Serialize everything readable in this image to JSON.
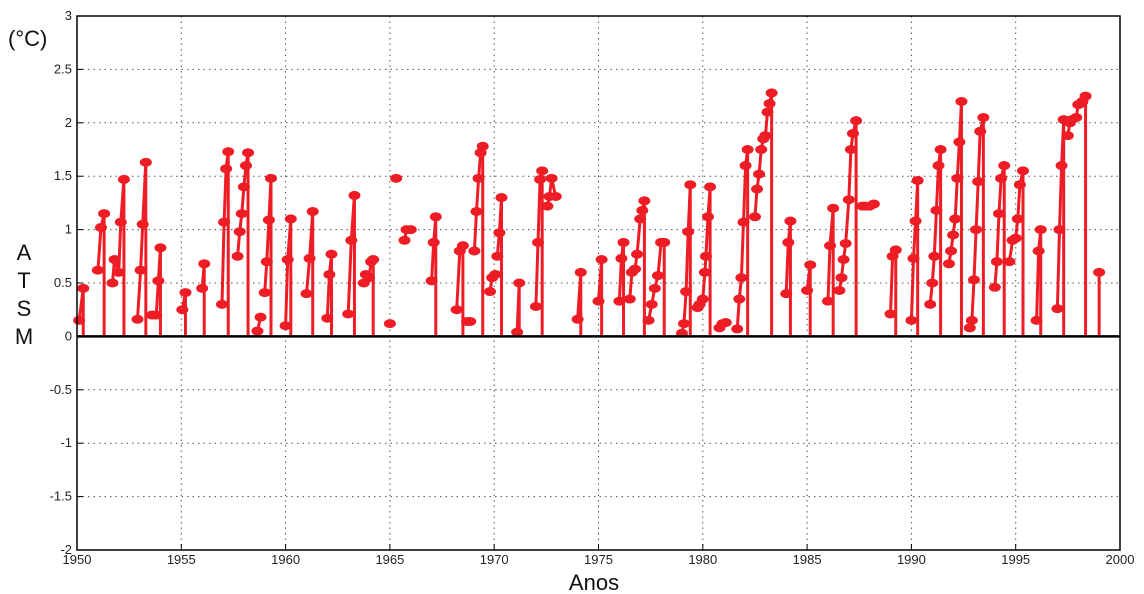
{
  "chart_data": {
    "type": "line",
    "unit_label": "(°C)",
    "ylabel_letters": [
      "A",
      "T",
      "S",
      "M"
    ],
    "xlabel": "Anos",
    "xlim": [
      1950,
      2000
    ],
    "ylim": [
      -2,
      3
    ],
    "xticks": [
      "1950",
      "1955",
      "1960",
      "1965",
      "1970",
      "1975",
      "1980",
      "1985",
      "1990",
      "1995",
      "2000"
    ],
    "yticks": [
      "-2",
      "-1.5",
      "-1",
      "-0.5",
      "0",
      "0.5",
      "1",
      "1.5",
      "2",
      "2.5",
      "3"
    ],
    "grid": true,
    "color": "#ee1c25",
    "segments": [
      [
        [
          1950.1,
          0.15
        ],
        [
          1950.3,
          0.45
        ]
      ],
      [
        [
          1951.0,
          0.62
        ],
        [
          1951.15,
          1.02
        ],
        [
          1951.3,
          1.15
        ]
      ],
      [
        [
          1951.7,
          0.5
        ],
        [
          1951.8,
          0.72
        ],
        [
          1952.0,
          0.6
        ],
        [
          1952.1,
          1.07
        ],
        [
          1952.25,
          1.47
        ]
      ],
      [
        [
          1952.9,
          0.16
        ],
        [
          1953.05,
          0.62
        ],
        [
          1953.15,
          1.05
        ],
        [
          1953.3,
          1.63
        ]
      ],
      [
        [
          1953.6,
          0.2
        ],
        [
          1953.8,
          0.2
        ],
        [
          1953.9,
          0.52
        ],
        [
          1954.0,
          0.83
        ]
      ],
      [
        [
          1955.05,
          0.25
        ],
        [
          1955.2,
          0.41
        ]
      ],
      [
        [
          1956.0,
          0.45
        ],
        [
          1956.1,
          0.68
        ]
      ],
      [
        [
          1956.95,
          0.3
        ],
        [
          1957.05,
          1.07
        ],
        [
          1957.15,
          1.57
        ],
        [
          1957.25,
          1.73
        ]
      ],
      [
        [
          1957.7,
          0.75
        ],
        [
          1957.8,
          0.98
        ],
        [
          1957.9,
          1.15
        ],
        [
          1958.0,
          1.4
        ],
        [
          1958.1,
          1.6
        ],
        [
          1958.2,
          1.72
        ]
      ],
      [
        [
          1958.65,
          0.05
        ],
        [
          1958.8,
          0.18
        ]
      ],
      [
        [
          1959.0,
          0.41
        ],
        [
          1959.1,
          0.7
        ],
        [
          1959.2,
          1.09
        ],
        [
          1959.3,
          1.48
        ]
      ],
      [
        [
          1960.0,
          0.1
        ],
        [
          1960.1,
          0.72
        ],
        [
          1960.25,
          1.1
        ]
      ],
      [
        [
          1961.0,
          0.4
        ],
        [
          1961.15,
          0.73
        ],
        [
          1961.3,
          1.17
        ]
      ],
      [
        [
          1962.0,
          0.17
        ],
        [
          1962.1,
          0.58
        ],
        [
          1962.2,
          0.77
        ]
      ],
      [
        [
          1963.0,
          0.21
        ],
        [
          1963.15,
          0.9
        ],
        [
          1963.3,
          1.32
        ]
      ],
      [
        [
          1963.75,
          0.5
        ],
        [
          1963.85,
          0.58
        ],
        [
          1964.0,
          0.55
        ],
        [
          1964.1,
          0.7
        ],
        [
          1964.2,
          0.72
        ]
      ],
      [
        [
          1965.0,
          0.12
        ]
      ],
      [
        [
          1965.3,
          1.48
        ]
      ],
      [
        [
          1965.7,
          0.9
        ],
        [
          1965.8,
          1.0
        ],
        [
          1966.0,
          1.0
        ]
      ],
      [
        [
          1967.0,
          0.52
        ],
        [
          1967.1,
          0.88
        ],
        [
          1967.2,
          1.12
        ]
      ],
      [
        [
          1968.2,
          0.25
        ],
        [
          1968.35,
          0.8
        ],
        [
          1968.5,
          0.85
        ]
      ],
      [
        [
          1968.7,
          0.14
        ],
        [
          1968.85,
          0.14
        ]
      ],
      [
        [
          1969.05,
          0.8
        ],
        [
          1969.15,
          1.17
        ],
        [
          1969.25,
          1.48
        ],
        [
          1969.35,
          1.72
        ],
        [
          1969.45,
          1.78
        ]
      ],
      [
        [
          1969.8,
          0.42
        ],
        [
          1969.9,
          0.55
        ],
        [
          1970.05,
          0.58
        ]
      ],
      [
        [
          1970.15,
          0.75
        ],
        [
          1970.25,
          0.97
        ],
        [
          1970.35,
          1.3
        ]
      ],
      [
        [
          1971.1,
          0.04
        ],
        [
          1971.2,
          0.5
        ]
      ],
      [
        [
          1972.0,
          0.28
        ],
        [
          1972.1,
          0.88
        ],
        [
          1972.2,
          1.47
        ],
        [
          1972.3,
          1.55
        ]
      ],
      [
        [
          1972.55,
          1.22
        ],
        [
          1972.65,
          1.31
        ],
        [
          1972.75,
          1.48
        ],
        [
          1972.95,
          1.31
        ]
      ],
      [
        [
          1974.0,
          0.16
        ],
        [
          1974.15,
          0.6
        ]
      ],
      [
        [
          1975.0,
          0.33
        ],
        [
          1975.15,
          0.72
        ]
      ],
      [
        [
          1976.0,
          0.33
        ],
        [
          1976.1,
          0.73
        ],
        [
          1976.2,
          0.88
        ]
      ],
      [
        [
          1976.5,
          0.35
        ],
        [
          1976.6,
          0.6
        ],
        [
          1976.75,
          0.63
        ],
        [
          1976.85,
          0.77
        ],
        [
          1977.0,
          1.1
        ],
        [
          1977.1,
          1.18
        ],
        [
          1977.2,
          1.27
        ]
      ],
      [
        [
          1977.4,
          0.15
        ],
        [
          1977.55,
          0.3
        ],
        [
          1977.7,
          0.45
        ],
        [
          1977.85,
          0.57
        ],
        [
          1978.0,
          0.88
        ],
        [
          1978.15,
          0.88
        ]
      ],
      [
        [
          1979.0,
          0.03
        ],
        [
          1979.1,
          0.12
        ],
        [
          1979.2,
          0.42
        ],
        [
          1979.3,
          0.98
        ],
        [
          1979.4,
          1.42
        ]
      ],
      [
        [
          1979.75,
          0.27
        ],
        [
          1979.85,
          0.3
        ],
        [
          1980.0,
          0.35
        ],
        [
          1980.1,
          0.6
        ],
        [
          1980.15,
          0.75
        ],
        [
          1980.25,
          1.12
        ],
        [
          1980.35,
          1.4
        ]
      ],
      [
        [
          1980.8,
          0.08
        ],
        [
          1980.95,
          0.12
        ],
        [
          1981.1,
          0.13
        ]
      ],
      [
        [
          1981.65,
          0.07
        ],
        [
          1981.75,
          0.35
        ],
        [
          1981.85,
          0.55
        ],
        [
          1981.95,
          1.07
        ],
        [
          1982.05,
          1.6
        ],
        [
          1982.15,
          1.75
        ]
      ],
      [
        [
          1982.5,
          1.12
        ],
        [
          1982.6,
          1.38
        ],
        [
          1982.7,
          1.52
        ],
        [
          1982.8,
          1.75
        ],
        [
          1982.9,
          1.85
        ],
        [
          1983.0,
          1.88
        ],
        [
          1983.1,
          2.1
        ],
        [
          1983.2,
          2.18
        ],
        [
          1983.3,
          2.28
        ]
      ],
      [
        [
          1984.0,
          0.4
        ],
        [
          1984.1,
          0.88
        ],
        [
          1984.2,
          1.08
        ]
      ],
      [
        [
          1985.0,
          0.43
        ],
        [
          1985.15,
          0.67
        ]
      ],
      [
        [
          1986.0,
          0.33
        ],
        [
          1986.1,
          0.85
        ],
        [
          1986.25,
          1.2
        ]
      ],
      [
        [
          1986.55,
          0.43
        ],
        [
          1986.65,
          0.55
        ],
        [
          1986.75,
          0.72
        ],
        [
          1986.85,
          0.87
        ],
        [
          1987.0,
          1.28
        ],
        [
          1987.1,
          1.75
        ],
        [
          1987.2,
          1.9
        ],
        [
          1987.35,
          2.02
        ]
      ],
      [
        [
          1987.65,
          1.22
        ],
        [
          1987.8,
          1.22
        ],
        [
          1988.0,
          1.22
        ],
        [
          1988.2,
          1.24
        ]
      ],
      [
        [
          1989.0,
          0.21
        ],
        [
          1989.1,
          0.75
        ],
        [
          1989.25,
          0.81
        ]
      ],
      [
        [
          1990.0,
          0.15
        ],
        [
          1990.1,
          0.73
        ],
        [
          1990.2,
          1.08
        ],
        [
          1990.3,
          1.46
        ]
      ],
      [
        [
          1990.9,
          0.3
        ],
        [
          1991.0,
          0.5
        ],
        [
          1991.1,
          0.75
        ],
        [
          1991.2,
          1.18
        ],
        [
          1991.3,
          1.6
        ],
        [
          1991.4,
          1.75
        ]
      ],
      [
        [
          1991.8,
          0.68
        ],
        [
          1991.9,
          0.8
        ],
        [
          1992.0,
          0.95
        ],
        [
          1992.1,
          1.1
        ],
        [
          1992.2,
          1.48
        ],
        [
          1992.3,
          1.82
        ],
        [
          1992.4,
          2.2
        ]
      ],
      [
        [
          1992.8,
          0.08
        ],
        [
          1992.9,
          0.15
        ],
        [
          1993.0,
          0.53
        ],
        [
          1993.1,
          1.0
        ],
        [
          1993.2,
          1.45
        ],
        [
          1993.3,
          1.92
        ],
        [
          1993.45,
          2.05
        ]
      ],
      [
        [
          1994.0,
          0.46
        ],
        [
          1994.1,
          0.7
        ],
        [
          1994.2,
          1.15
        ],
        [
          1994.3,
          1.48
        ],
        [
          1994.45,
          1.6
        ]
      ],
      [
        [
          1994.7,
          0.7
        ],
        [
          1994.85,
          0.9
        ],
        [
          1995.0,
          0.92
        ],
        [
          1995.1,
          1.1
        ],
        [
          1995.2,
          1.42
        ],
        [
          1995.35,
          1.55
        ]
      ],
      [
        [
          1996.0,
          0.15
        ],
        [
          1996.1,
          0.8
        ],
        [
          1996.2,
          1.0
        ]
      ],
      [
        [
          1997.0,
          0.26
        ],
        [
          1997.1,
          1.0
        ],
        [
          1997.2,
          1.6
        ],
        [
          1997.3,
          2.03
        ]
      ],
      [
        [
          1997.5,
          1.88
        ],
        [
          1997.6,
          2.0
        ],
        [
          1997.7,
          2.03
        ],
        [
          1997.9,
          2.05
        ],
        [
          1998.0,
          2.17
        ],
        [
          1998.1,
          2.18
        ],
        [
          1998.2,
          2.2
        ],
        [
          1998.35,
          2.25
        ]
      ],
      [
        [
          1999.0,
          0.6
        ]
      ]
    ],
    "stems": [
      [
        1950.3,
        0.45
      ],
      [
        1951.3,
        1.15
      ],
      [
        1952.25,
        1.47
      ],
      [
        1953.3,
        1.63
      ],
      [
        1954.0,
        0.83
      ],
      [
        1955.2,
        0.41
      ],
      [
        1956.1,
        0.68
      ],
      [
        1957.25,
        1.73
      ],
      [
        1958.2,
        1.72
      ],
      [
        1959.3,
        1.48
      ],
      [
        1960.25,
        1.1
      ],
      [
        1961.3,
        1.17
      ],
      [
        1962.2,
        0.77
      ],
      [
        1963.3,
        1.32
      ],
      [
        1964.2,
        0.72
      ],
      [
        1967.2,
        1.12
      ],
      [
        1968.5,
        0.85
      ],
      [
        1969.45,
        1.78
      ],
      [
        1970.35,
        1.3
      ],
      [
        1971.2,
        0.5
      ],
      [
        1972.3,
        1.55
      ],
      [
        1974.15,
        0.6
      ],
      [
        1975.15,
        0.72
      ],
      [
        1976.2,
        0.88
      ],
      [
        1977.2,
        1.27
      ],
      [
        1978.15,
        0.88
      ],
      [
        1979.4,
        1.42
      ],
      [
        1980.35,
        1.4
      ],
      [
        1982.15,
        1.75
      ],
      [
        1983.3,
        2.28
      ],
      [
        1984.2,
        1.08
      ],
      [
        1985.15,
        0.67
      ],
      [
        1986.25,
        1.2
      ],
      [
        1987.35,
        2.02
      ],
      [
        1989.25,
        0.81
      ],
      [
        1990.3,
        1.46
      ],
      [
        1991.4,
        1.75
      ],
      [
        1992.4,
        2.2
      ],
      [
        1993.45,
        2.05
      ],
      [
        1994.45,
        1.6
      ],
      [
        1995.35,
        1.55
      ],
      [
        1996.2,
        1.0
      ],
      [
        1997.3,
        2.03
      ],
      [
        1998.35,
        2.25
      ],
      [
        1999.0,
        0.6
      ]
    ]
  }
}
